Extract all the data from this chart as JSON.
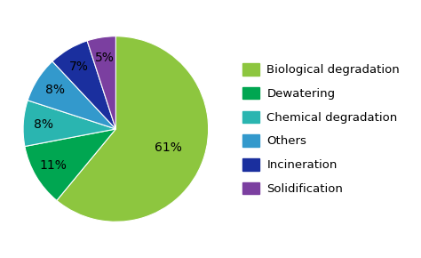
{
  "labels": [
    "Biological degradation",
    "Dewatering",
    "Chemical degradation",
    "Others",
    "Incineration",
    "Solidification"
  ],
  "values": [
    61,
    11,
    8,
    8,
    7,
    5
  ],
  "colors": [
    "#8dc63f",
    "#00a651",
    "#2ab5b0",
    "#3399cc",
    "#1a2f9e",
    "#7b3fa0"
  ],
  "pct_labels": [
    "61%",
    "11%",
    "8%",
    "8%",
    "7%",
    "5%"
  ],
  "startangle": 90,
  "legend_fontsize": 9.5,
  "pct_fontsize": 10,
  "r_large": 0.6,
  "r_small": 0.78
}
